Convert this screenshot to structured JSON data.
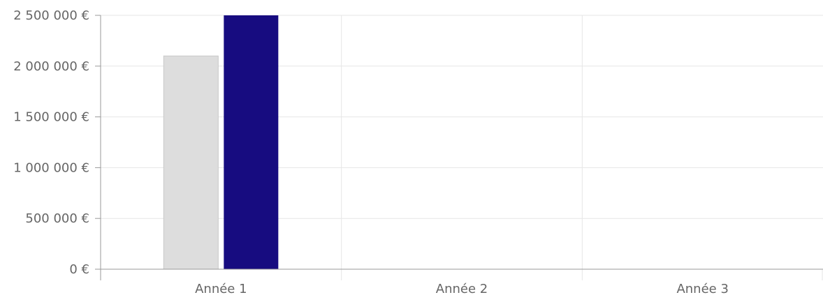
{
  "chart_data": {
    "type": "bar",
    "categories": [
      "Année 1",
      "Année 2",
      "Année 3"
    ],
    "series": [
      {
        "values": [
          2100000,
          null,
          null
        ],
        "color": "#dddddd"
      },
      {
        "values": [
          2500000,
          null,
          null
        ],
        "color": "#170c80"
      }
    ],
    "y_ticks": [
      "0 €",
      "500 000 €",
      "1 000 000 €",
      "1 500 000 €",
      "2 000 000 €",
      "2 500 000 €"
    ],
    "ylim": [
      0,
      2500000
    ],
    "grid": true,
    "axis_color": "#999999",
    "grid_color": "#e6e6e6"
  }
}
